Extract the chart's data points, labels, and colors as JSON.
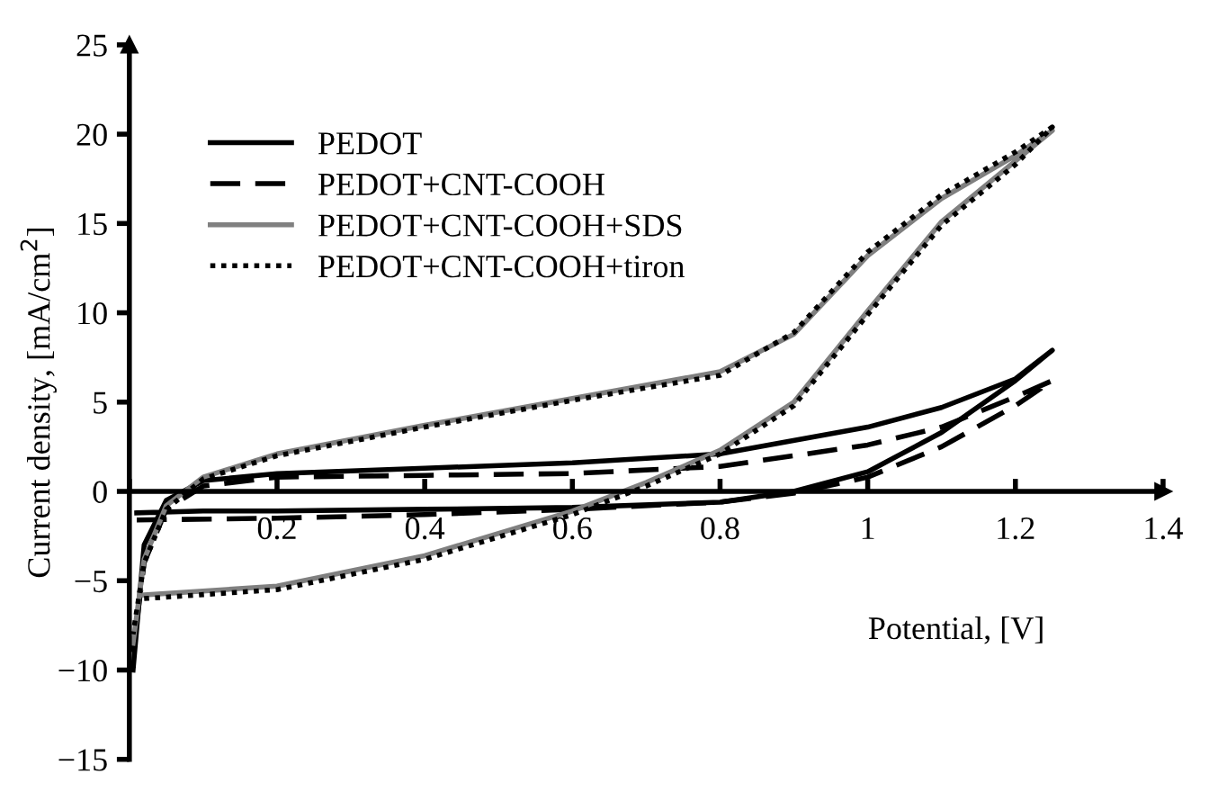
{
  "chart_data": {
    "type": "line",
    "xlabel": "Potential, [V]",
    "ylabel": "Current density, [mA/cm$^{2}$]",
    "xlim": [
      0,
      1.4
    ],
    "ylim": [
      -15,
      25
    ],
    "xticks": [
      {
        "value": 0,
        "label": null
      },
      0.2,
      0.4,
      0.6,
      0.8,
      1,
      1.2,
      1.4
    ],
    "yticks": [
      {
        "value": -15,
        "label": "−15"
      },
      {
        "value": -10,
        "label": "−10"
      },
      {
        "value": -5,
        "label": "−5"
      },
      0,
      5,
      10,
      15,
      20,
      25
    ],
    "grid": false,
    "legend": "top left",
    "marker": "none",
    "series": [
      {
        "name": "PEDOT",
        "color": "#000000",
        "line_style": "solid",
        "x": [
          0.01,
          0.1,
          0.2,
          0.4,
          0.6,
          0.8,
          0.9,
          1.0,
          1.1,
          1.2,
          1.25,
          1.2,
          1.1,
          1.0,
          0.8,
          0.6,
          0.4,
          0.2,
          0.1,
          0.05,
          0.02,
          0.005
        ],
        "values": [
          -1.2,
          -1.1,
          -1.1,
          -1.0,
          -0.9,
          -0.6,
          0.0,
          1.1,
          3.3,
          6.2,
          7.9,
          6.3,
          4.7,
          3.6,
          2.1,
          1.6,
          1.3,
          1.0,
          0.6,
          -0.5,
          -3,
          -10
        ]
      },
      {
        "name": "PEDOT+CNT-COOH",
        "color": "#000000",
        "line_style": "dashed",
        "x": [
          0.01,
          0.2,
          0.4,
          0.6,
          0.8,
          0.9,
          1.0,
          1.1,
          1.2,
          1.25,
          1.2,
          1.1,
          1.0,
          0.8,
          0.6,
          0.4,
          0.2,
          0.1,
          0.05,
          0.02,
          0.005
        ],
        "values": [
          -1.6,
          -1.5,
          -1.3,
          -1.0,
          -0.6,
          -0.1,
          0.8,
          2.5,
          4.8,
          6.2,
          5.3,
          3.6,
          2.6,
          1.4,
          1.0,
          0.9,
          0.8,
          0.3,
          -1,
          -4,
          -9
        ]
      },
      {
        "name": "PEDOT+CNT-COOH+SDS",
        "color": "#808080",
        "line_style": "solid",
        "x": [
          0.02,
          0.2,
          0.4,
          0.6,
          0.7,
          0.8,
          0.9,
          1.0,
          1.1,
          1.2,
          1.25,
          1.2,
          1.1,
          1.0,
          0.9,
          0.8,
          0.6,
          0.4,
          0.2,
          0.1,
          0.05,
          0.02,
          0.005
        ],
        "values": [
          -5.8,
          -5.3,
          -3.6,
          -1.1,
          0.5,
          2.3,
          5.0,
          10.1,
          15.1,
          18.5,
          20.2,
          18.8,
          16.4,
          13.2,
          8.8,
          6.7,
          5.2,
          3.7,
          2.1,
          0.8,
          -0.8,
          -3.8,
          -8.5
        ]
      },
      {
        "name": "PEDOT+CNT-COOH+tiron",
        "color": "#000000",
        "line_style": "dotted",
        "x": [
          0.02,
          0.2,
          0.4,
          0.6,
          0.7,
          0.8,
          0.9,
          1.0,
          1.1,
          1.2,
          1.25,
          1.2,
          1.1,
          1.0,
          0.9,
          0.8,
          0.6,
          0.4,
          0.2,
          0.1,
          0.05,
          0.02,
          0.005
        ],
        "values": [
          -6.0,
          -5.5,
          -3.8,
          -1.3,
          0.3,
          2.1,
          4.8,
          9.9,
          14.9,
          18.3,
          20.4,
          19.0,
          16.6,
          13.4,
          8.9,
          6.5,
          5.1,
          3.6,
          2.0,
          0.7,
          -1.0,
          -4.0,
          -8.0
        ]
      }
    ]
  }
}
